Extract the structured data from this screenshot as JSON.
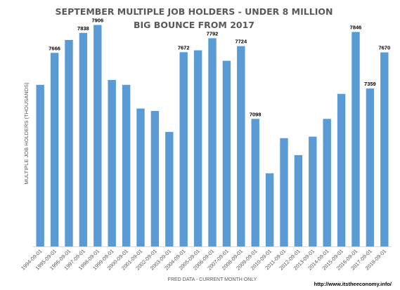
{
  "chart_data": {
    "type": "bar",
    "title": "SEPTEMBER MULTIPLE JOB HOLDERS - UNDER 8 MILLION",
    "subtitle": "BIG BOUNCE FROM 2017",
    "ylabel": "MULTIPLE JOB HOLDERS (THOUSANDS)",
    "xlabel": "FRED DATA - CURRENT MONTH ONLY",
    "source_url": "http://www.itstheeconomy.info/",
    "bar_color": "#5B9BD5",
    "ylim": [
      6000,
      8000
    ],
    "grid": false,
    "legend": "none",
    "categories": [
      "1994-09-01",
      "1995-09-01",
      "1996-09-01",
      "1997-09-01",
      "1998-09-01",
      "1999-09-01",
      "2000-09-01",
      "2001-09-01",
      "2002-09-01",
      "2003-09-01",
      "2004-09-01",
      "2005-09-01",
      "2006-09-01",
      "2007-09-01",
      "2008-09-01",
      "2009-09-01",
      "2010-09-01",
      "2011-09-01",
      "2012-09-01",
      "2013-09-01",
      "2014-09-01",
      "2015-09-01",
      "2016-09-01",
      "2017-09-01",
      "2018-09-01"
    ],
    "values": [
      7391,
      7666,
      7777,
      7838,
      7906,
      7433,
      7391,
      7187,
      7166,
      6986,
      7672,
      7688,
      7792,
      7598,
      7724,
      7098,
      6630,
      6932,
      6786,
      6945,
      7098,
      7313,
      7846,
      7359,
      7670
    ],
    "labeled": [
      false,
      true,
      false,
      true,
      true,
      false,
      false,
      false,
      false,
      false,
      true,
      false,
      true,
      false,
      true,
      true,
      false,
      false,
      false,
      false,
      false,
      false,
      true,
      true,
      true
    ]
  }
}
